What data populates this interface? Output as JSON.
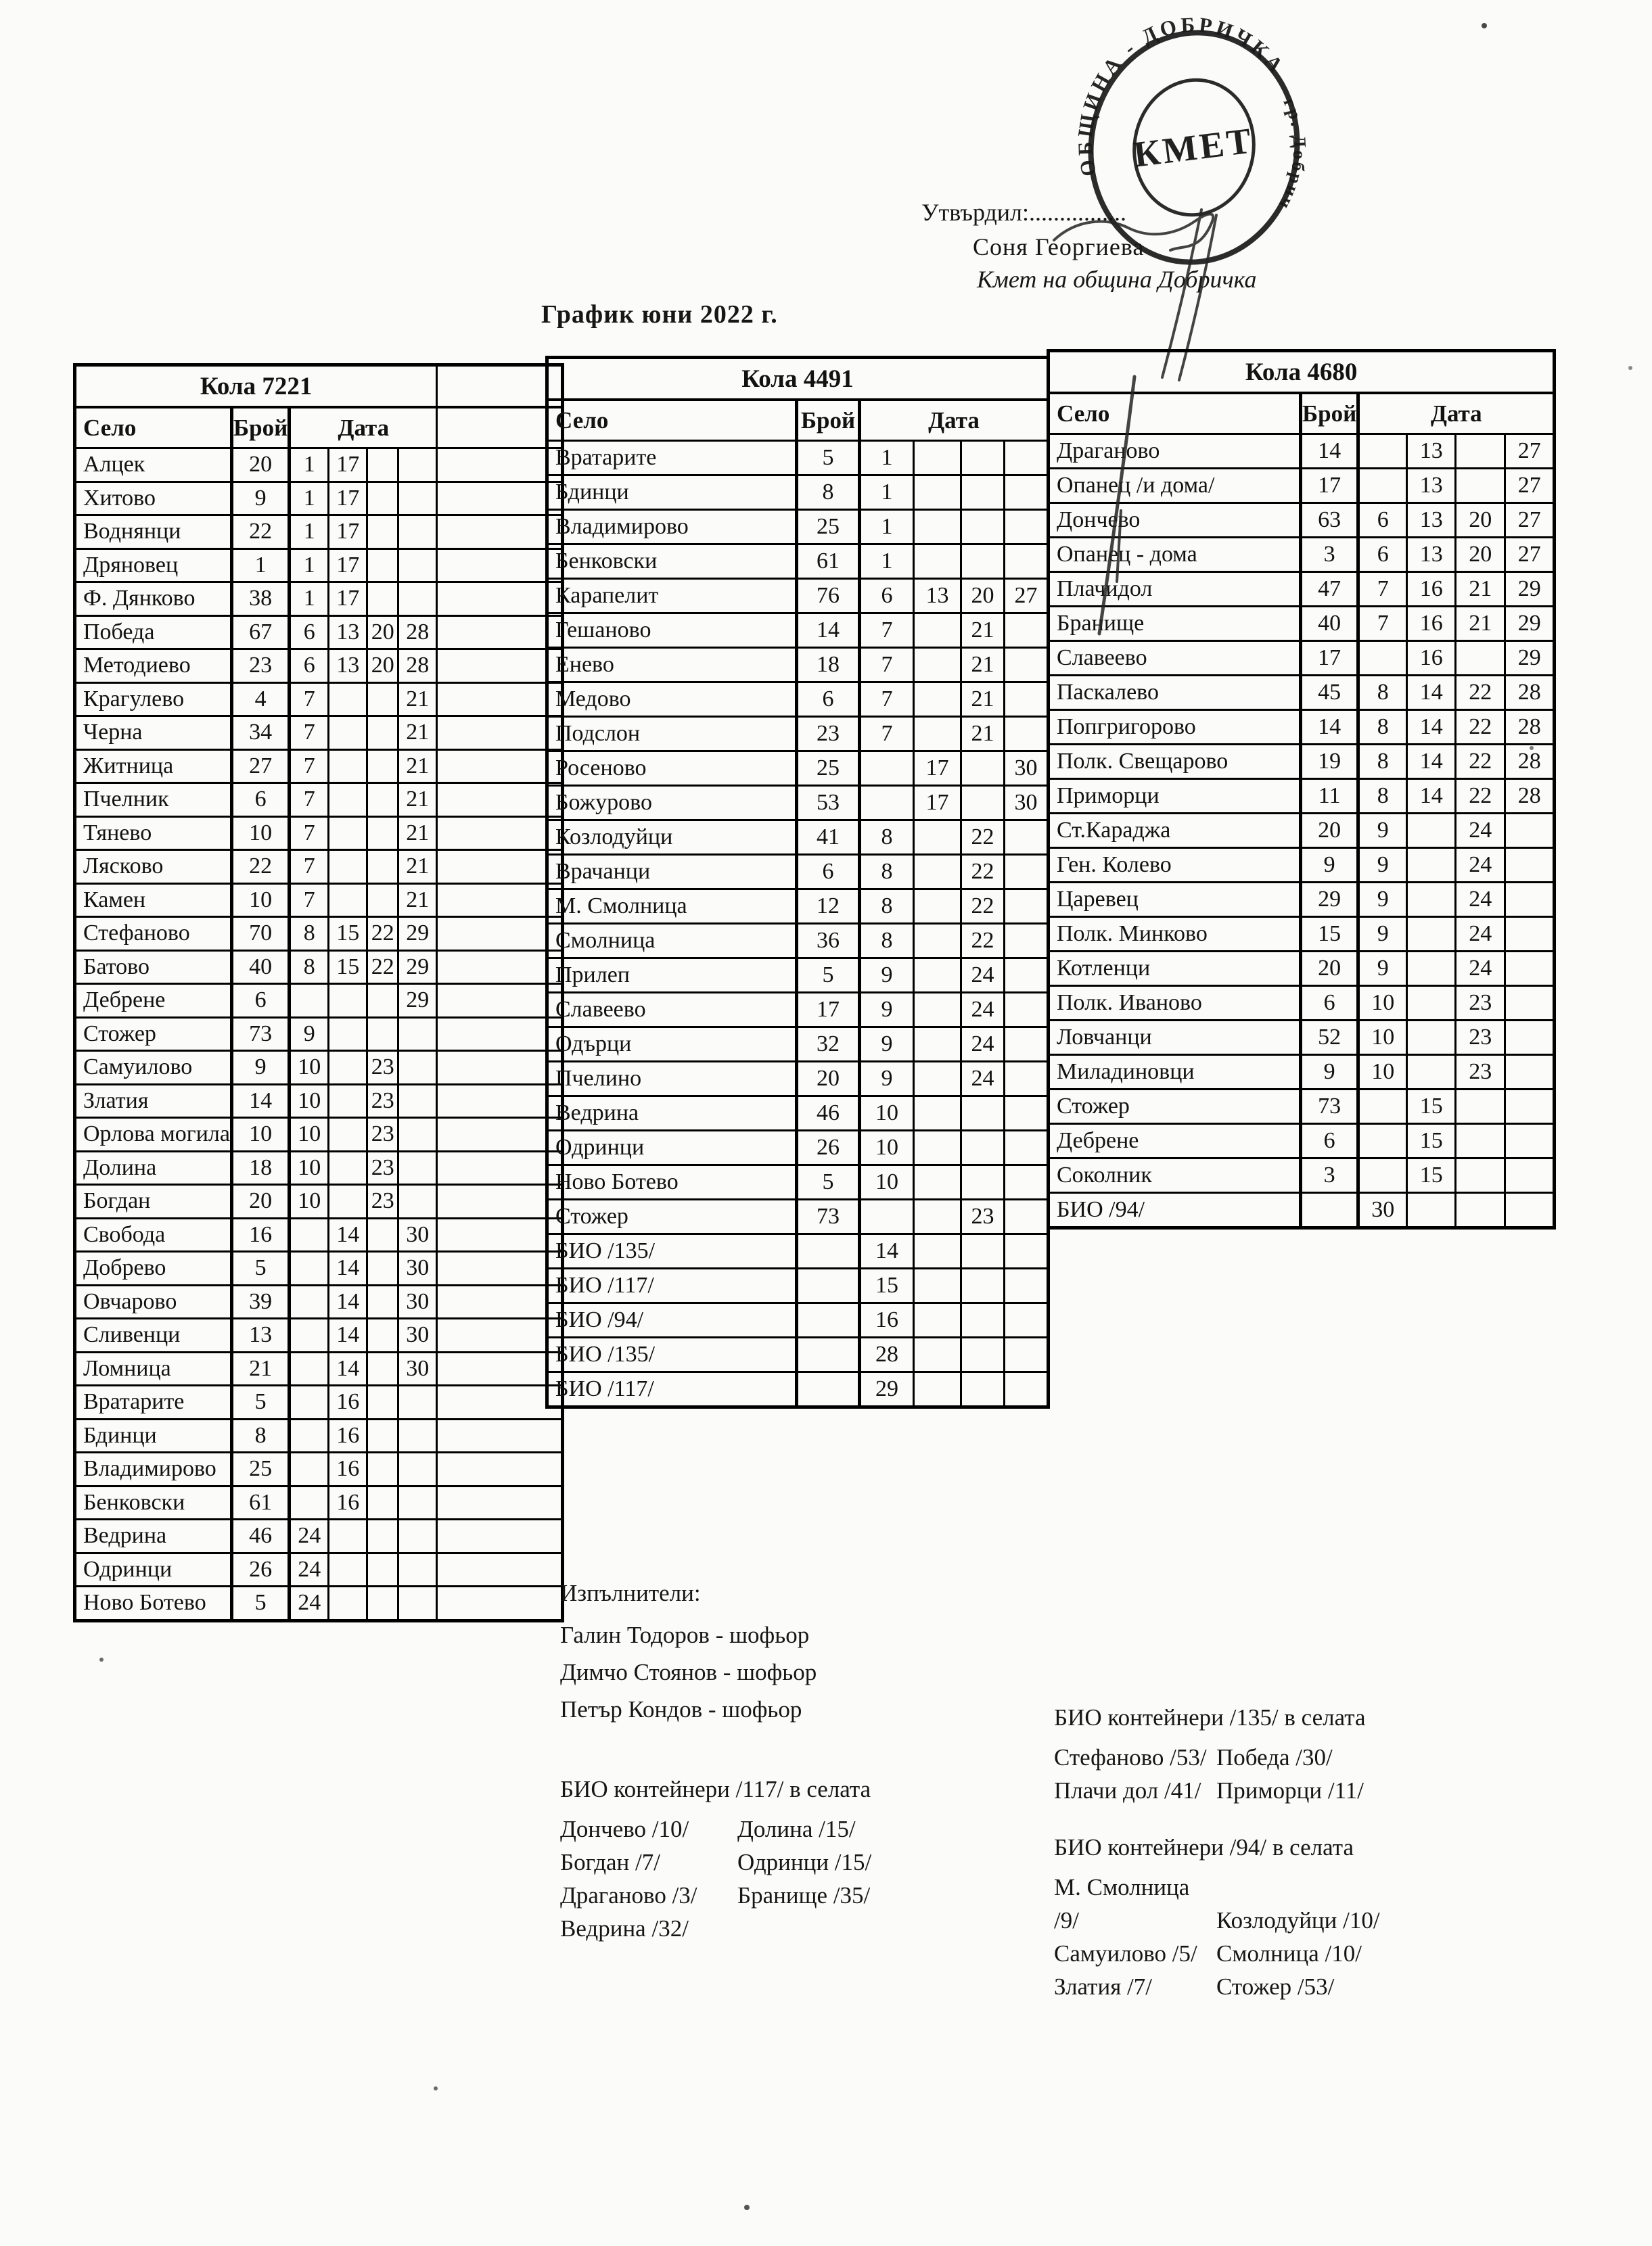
{
  "page": {
    "title": "График юни 2022 г.",
    "paper_color": "#fbfbf9",
    "ink_color": "#161616",
    "approval": {
      "label": "Утвърдил:................",
      "signer_name": "Соня Георгиева",
      "signer_role": "Кмет  на община Добричка"
    },
    "stamp": {
      "ring_text": "ОБЩИНА - ДОБРИЧКА",
      "ring_text_right": "гр. Добрич",
      "center_text": "КМЕТ"
    }
  },
  "tables": [
    {
      "title": "Кола 7221",
      "headers": {
        "village": "Село",
        "count": "Брой",
        "date": "Дата"
      },
      "rows": [
        {
          "village": "Алцек",
          "count": "20",
          "dates": [
            "1",
            "17",
            "",
            "",
            ""
          ]
        },
        {
          "village": "Хитово",
          "count": "9",
          "dates": [
            "1",
            "17",
            "",
            "",
            ""
          ]
        },
        {
          "village": "Воднянци",
          "count": "22",
          "dates": [
            "1",
            "17",
            "",
            "",
            ""
          ]
        },
        {
          "village": "Дряновец",
          "count": "1",
          "dates": [
            "1",
            "17",
            "",
            "",
            ""
          ]
        },
        {
          "village": "Ф. Дянково",
          "count": "38",
          "dates": [
            "1",
            "17",
            "",
            "",
            ""
          ]
        },
        {
          "village": "Победа",
          "count": "67",
          "dates": [
            "6",
            "13",
            "20",
            "28",
            ""
          ]
        },
        {
          "village": "Методиево",
          "count": "23",
          "dates": [
            "6",
            "13",
            "20",
            "28",
            ""
          ]
        },
        {
          "village": "Крагулево",
          "count": "4",
          "dates": [
            "7",
            "",
            "",
            "21",
            ""
          ]
        },
        {
          "village": "Черна",
          "count": "34",
          "dates": [
            "7",
            "",
            "",
            "21",
            ""
          ]
        },
        {
          "village": "Житница",
          "count": "27",
          "dates": [
            "7",
            "",
            "",
            "21",
            ""
          ]
        },
        {
          "village": "Пчелник",
          "count": "6",
          "dates": [
            "7",
            "",
            "",
            "21",
            ""
          ]
        },
        {
          "village": "Тянево",
          "count": "10",
          "dates": [
            "7",
            "",
            "",
            "21",
            ""
          ]
        },
        {
          "village": "Лясково",
          "count": "22",
          "dates": [
            "7",
            "",
            "",
            "21",
            ""
          ]
        },
        {
          "village": "Камен",
          "count": "10",
          "dates": [
            "7",
            "",
            "",
            "21",
            ""
          ]
        },
        {
          "village": "Стефаново",
          "count": "70",
          "dates": [
            "8",
            "15",
            "22",
            "29",
            ""
          ]
        },
        {
          "village": "Батово",
          "count": "40",
          "dates": [
            "8",
            "15",
            "22",
            "29",
            ""
          ]
        },
        {
          "village": "Дебрене",
          "count": "6",
          "dates": [
            "",
            "",
            "",
            "29",
            ""
          ]
        },
        {
          "village": "Стожер",
          "count": "73",
          "dates": [
            "9",
            "",
            "",
            "",
            ""
          ]
        },
        {
          "village": "Самуилово",
          "count": "9",
          "dates": [
            "10",
            "",
            "23",
            "",
            ""
          ]
        },
        {
          "village": "Златия",
          "count": "14",
          "dates": [
            "10",
            "",
            "23",
            "",
            ""
          ]
        },
        {
          "village": "Орлова могила",
          "count": "10",
          "dates": [
            "10",
            "",
            "23",
            "",
            ""
          ]
        },
        {
          "village": "Долина",
          "count": "18",
          "dates": [
            "10",
            "",
            "23",
            "",
            ""
          ]
        },
        {
          "village": "Богдан",
          "count": "20",
          "dates": [
            "10",
            "",
            "23",
            "",
            ""
          ]
        },
        {
          "village": "Свобода",
          "count": "16",
          "dates": [
            "",
            "14",
            "",
            "30",
            ""
          ]
        },
        {
          "village": "Добрево",
          "count": "5",
          "dates": [
            "",
            "14",
            "",
            "30",
            ""
          ]
        },
        {
          "village": "Овчарово",
          "count": "39",
          "dates": [
            "",
            "14",
            "",
            "30",
            ""
          ]
        },
        {
          "village": "Сливенци",
          "count": "13",
          "dates": [
            "",
            "14",
            "",
            "30",
            ""
          ]
        },
        {
          "village": "Ломница",
          "count": "21",
          "dates": [
            "",
            "14",
            "",
            "30",
            ""
          ]
        },
        {
          "village": "Вратарите",
          "count": "5",
          "dates": [
            "",
            "16",
            "",
            "",
            ""
          ]
        },
        {
          "village": "Бдинци",
          "count": "8",
          "dates": [
            "",
            "16",
            "",
            "",
            ""
          ]
        },
        {
          "village": "Владимирово",
          "count": "25",
          "dates": [
            "",
            "16",
            "",
            "",
            ""
          ]
        },
        {
          "village": "Бенковски",
          "count": "61",
          "dates": [
            "",
            "16",
            "",
            "",
            ""
          ]
        },
        {
          "village": "Ведрина",
          "count": "46",
          "dates": [
            "24",
            "",
            "",
            "",
            ""
          ]
        },
        {
          "village": "Одринци",
          "count": "26",
          "dates": [
            "24",
            "",
            "",
            "",
            ""
          ]
        },
        {
          "village": "Ново Ботево",
          "count": "5",
          "dates": [
            "24",
            "",
            "",
            "",
            ""
          ]
        }
      ]
    },
    {
      "title": "Кола 4491",
      "headers": {
        "village": "Село",
        "count": "Брой",
        "date": "Дата"
      },
      "rows": [
        {
          "village": "Вратарите",
          "count": "5",
          "dates": [
            "1",
            "",
            "",
            ""
          ]
        },
        {
          "village": "Бдинци",
          "count": "8",
          "dates": [
            "1",
            "",
            "",
            ""
          ]
        },
        {
          "village": "Владимирово",
          "count": "25",
          "dates": [
            "1",
            "",
            "",
            ""
          ]
        },
        {
          "village": "Бенковски",
          "count": "61",
          "dates": [
            "1",
            "",
            "",
            ""
          ]
        },
        {
          "village": "Карапелит",
          "count": "76",
          "dates": [
            "6",
            "13",
            "20",
            "27"
          ]
        },
        {
          "village": "Гешаново",
          "count": "14",
          "dates": [
            "7",
            "",
            "21",
            ""
          ]
        },
        {
          "village": "Енево",
          "count": "18",
          "dates": [
            "7",
            "",
            "21",
            ""
          ]
        },
        {
          "village": "Медово",
          "count": "6",
          "dates": [
            "7",
            "",
            "21",
            ""
          ]
        },
        {
          "village": "Подслон",
          "count": "23",
          "dates": [
            "7",
            "",
            "21",
            ""
          ]
        },
        {
          "village": "Росеново",
          "count": "25",
          "dates": [
            "",
            "17",
            "",
            "30"
          ]
        },
        {
          "village": "Божурово",
          "count": "53",
          "dates": [
            "",
            "17",
            "",
            "30"
          ]
        },
        {
          "village": "Козлодуйци",
          "count": "41",
          "dates": [
            "8",
            "",
            "22",
            ""
          ]
        },
        {
          "village": "Врачанци",
          "count": "6",
          "dates": [
            "8",
            "",
            "22",
            ""
          ]
        },
        {
          "village": "М. Смолница",
          "count": "12",
          "dates": [
            "8",
            "",
            "22",
            ""
          ]
        },
        {
          "village": "Смолница",
          "count": "36",
          "dates": [
            "8",
            "",
            "22",
            ""
          ]
        },
        {
          "village": "Прилеп",
          "count": "5",
          "dates": [
            "9",
            "",
            "24",
            ""
          ]
        },
        {
          "village": "Славеево",
          "count": "17",
          "dates": [
            "9",
            "",
            "24",
            ""
          ]
        },
        {
          "village": "Одърци",
          "count": "32",
          "dates": [
            "9",
            "",
            "24",
            ""
          ]
        },
        {
          "village": "Пчелино",
          "count": "20",
          "dates": [
            "9",
            "",
            "24",
            ""
          ]
        },
        {
          "village": "Ведрина",
          "count": "46",
          "dates": [
            "10",
            "",
            "",
            ""
          ]
        },
        {
          "village": "Одринци",
          "count": "26",
          "dates": [
            "10",
            "",
            "",
            ""
          ]
        },
        {
          "village": "Ново Ботево",
          "count": "5",
          "dates": [
            "10",
            "",
            "",
            ""
          ]
        },
        {
          "village": "Стожер",
          "count": "73",
          "dates": [
            "",
            "",
            "23",
            ""
          ]
        },
        {
          "village": "БИО /135/",
          "count": "",
          "dates": [
            "14",
            "",
            "",
            ""
          ]
        },
        {
          "village": "БИО /117/",
          "count": "",
          "dates": [
            "15",
            "",
            "",
            ""
          ]
        },
        {
          "village": "БИО /94/",
          "count": "",
          "dates": [
            "16",
            "",
            "",
            ""
          ]
        },
        {
          "village": "БИО /135/",
          "count": "",
          "dates": [
            "28",
            "",
            "",
            ""
          ]
        },
        {
          "village": "БИО /117/",
          "count": "",
          "dates": [
            "29",
            "",
            "",
            ""
          ]
        }
      ]
    },
    {
      "title": "Кола 4680",
      "headers": {
        "village": "Село",
        "count": "Брой",
        "date": "Дата"
      },
      "rows": [
        {
          "village": "Драганово",
          "count": "14",
          "dates": [
            "",
            "13",
            "",
            "27"
          ]
        },
        {
          "village": "Опанец /и дома/",
          "count": "17",
          "dates": [
            "",
            "13",
            "",
            "27"
          ]
        },
        {
          "village": "Дончево",
          "count": "63",
          "dates": [
            "6",
            "13",
            "20",
            "27"
          ]
        },
        {
          "village": "Опанец - дома",
          "count": "3",
          "dates": [
            "6",
            "13",
            "20",
            "27"
          ]
        },
        {
          "village": "Плачидол",
          "count": "47",
          "dates": [
            "7",
            "16",
            "21",
            "29"
          ]
        },
        {
          "village": "Бранище",
          "count": "40",
          "dates": [
            "7",
            "16",
            "21",
            "29"
          ]
        },
        {
          "village": "Славеево",
          "count": "17",
          "dates": [
            "",
            "16",
            "",
            "29"
          ]
        },
        {
          "village": "Паскалево",
          "count": "45",
          "dates": [
            "8",
            "14",
            "22",
            "28"
          ]
        },
        {
          "village": "Попгригорово",
          "count": "14",
          "dates": [
            "8",
            "14",
            "22",
            "28"
          ]
        },
        {
          "village": "Полк. Свещарово",
          "count": "19",
          "dates": [
            "8",
            "14",
            "22",
            "28"
          ]
        },
        {
          "village": "Приморци",
          "count": "11",
          "dates": [
            "8",
            "14",
            "22",
            "28"
          ]
        },
        {
          "village": "Ст.Караджа",
          "count": "20",
          "dates": [
            "9",
            "",
            "24",
            ""
          ]
        },
        {
          "village": "Ген. Колево",
          "count": "9",
          "dates": [
            "9",
            "",
            "24",
            ""
          ]
        },
        {
          "village": "Царевец",
          "count": "29",
          "dates": [
            "9",
            "",
            "24",
            ""
          ]
        },
        {
          "village": "Полк. Минково",
          "count": "15",
          "dates": [
            "9",
            "",
            "24",
            ""
          ]
        },
        {
          "village": "Котленци",
          "count": "20",
          "dates": [
            "9",
            "",
            "24",
            ""
          ]
        },
        {
          "village": "Полк. Иваново",
          "count": "6",
          "dates": [
            "10",
            "",
            "23",
            ""
          ]
        },
        {
          "village": "Ловчанци",
          "count": "52",
          "dates": [
            "10",
            "",
            "23",
            ""
          ]
        },
        {
          "village": "Миладиновци",
          "count": "9",
          "dates": [
            "10",
            "",
            "23",
            ""
          ]
        },
        {
          "village": "Стожер",
          "count": "73",
          "dates": [
            "",
            "15",
            "",
            ""
          ]
        },
        {
          "village": "Дебрене",
          "count": "6",
          "dates": [
            "",
            "15",
            "",
            ""
          ]
        },
        {
          "village": "Соколник",
          "count": "3",
          "dates": [
            "",
            "15",
            "",
            ""
          ]
        },
        {
          "village": "БИО /94/",
          "count": "",
          "dates": [
            "30",
            "",
            "",
            ""
          ]
        }
      ]
    }
  ],
  "footer": {
    "executors": {
      "title": "Изпълнители:",
      "lines": [
        "Галин Тодоров - шофьор",
        "Димчо Стоянов - шофьор",
        "Петър Кондов - шофьор"
      ]
    },
    "bio_135": {
      "title": "БИО контейнери /135/ в селата",
      "rows": [
        [
          "Стефаново /53/",
          "Победа /30/"
        ],
        [
          "Плачи дол /41/",
          "Приморци /11/"
        ]
      ]
    },
    "bio_117": {
      "title": "БИО контейнери /117/ в селата",
      "rows": [
        [
          "Дончево /10/",
          "Долина /15/"
        ],
        [
          "Богдан /7/",
          "Одринци /15/"
        ],
        [
          "Драганово /3/",
          "Бранище /35/"
        ],
        [
          "Ведрина /32/",
          ""
        ]
      ]
    },
    "bio_94": {
      "title": "БИО контейнери /94/ в селата",
      "rows": [
        [
          "М. Смолница /9/",
          "Козлодуйци /10/"
        ],
        [
          "Самуилово /5/",
          "Смолница /10/"
        ],
        [
          "Златия /7/",
          "Стожер /53/"
        ]
      ]
    }
  }
}
